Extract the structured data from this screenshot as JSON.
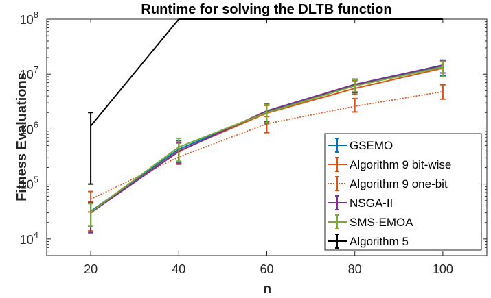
{
  "chart_data": {
    "type": "line",
    "title": "Runtime for solving the DLTB function",
    "xlabel": "n",
    "ylabel": "Fitness Evaluations",
    "xlim": [
      10,
      110
    ],
    "ylim": [
      5000,
      100000000
    ],
    "yscale": "log",
    "grid": false,
    "legend_position": "lower right (inside)",
    "x": [
      20,
      40,
      60,
      80,
      100
    ],
    "x_ticks": [
      20,
      40,
      60,
      80,
      100
    ],
    "y_ticks": [
      {
        "value": 10000,
        "base": "10",
        "exp": "4"
      },
      {
        "value": 100000,
        "base": "10",
        "exp": "5"
      },
      {
        "value": 1000000,
        "base": "10",
        "exp": "6"
      },
      {
        "value": 10000000,
        "base": "10",
        "exp": "7"
      },
      {
        "value": 100000000,
        "base": "10",
        "exp": "8"
      }
    ],
    "series": [
      {
        "name": "GSEMO",
        "color": "#0072BD",
        "dash": "",
        "values": [
          32000,
          430000,
          2050000,
          6300000,
          14200000
        ],
        "err_low": [
          17000,
          250000,
          1300000,
          4600000,
          9500000
        ],
        "err_high": [
          45000,
          620000,
          2800000,
          8000000,
          18000000
        ]
      },
      {
        "name": "Algorithm 9 bit-wise",
        "color": "#D95319",
        "dash": "",
        "values": [
          31000,
          400000,
          1950000,
          5500000,
          12800000
        ],
        "err_low": [
          14000,
          240000,
          1250000,
          4300000,
          9200000
        ],
        "err_high": [
          47000,
          580000,
          2700000,
          7600000,
          17000000
        ]
      },
      {
        "name": "Algorithm 9 one-bit",
        "color": "#D95319",
        "dash": "2,2",
        "values": [
          53000,
          310000,
          1250000,
          2600000,
          4800000
        ],
        "err_low": [
          31000,
          230000,
          860000,
          2050000,
          3500000
        ],
        "err_high": [
          73000,
          390000,
          1700000,
          3600000,
          6400000
        ]
      },
      {
        "name": "NSGA-II",
        "color": "#7E2F8E",
        "dash": "",
        "values": [
          30000,
          390000,
          2150000,
          6500000,
          14600000
        ],
        "err_low": [
          13000,
          230000,
          1350000,
          4700000,
          10500000
        ],
        "err_high": [
          46000,
          560000,
          2850000,
          8100000,
          17500000
        ]
      },
      {
        "name": "SMS-EMOA",
        "color": "#77AC30",
        "dash": "",
        "values": [
          31000,
          470000,
          2000000,
          6100000,
          13500000
        ],
        "err_low": [
          17000,
          260000,
          1300000,
          4800000,
          9000000
        ],
        "err_high": [
          44000,
          680000,
          2800000,
          7900000,
          17000000
        ]
      },
      {
        "name": "Algorithm 5",
        "color": "#000000",
        "dash": "",
        "values": [
          1140000,
          100000000,
          100000000,
          100000000,
          100000000
        ],
        "err_low": [
          100000,
          null,
          null,
          null,
          null
        ],
        "err_high": [
          2000000,
          null,
          null,
          null,
          null
        ]
      }
    ]
  }
}
